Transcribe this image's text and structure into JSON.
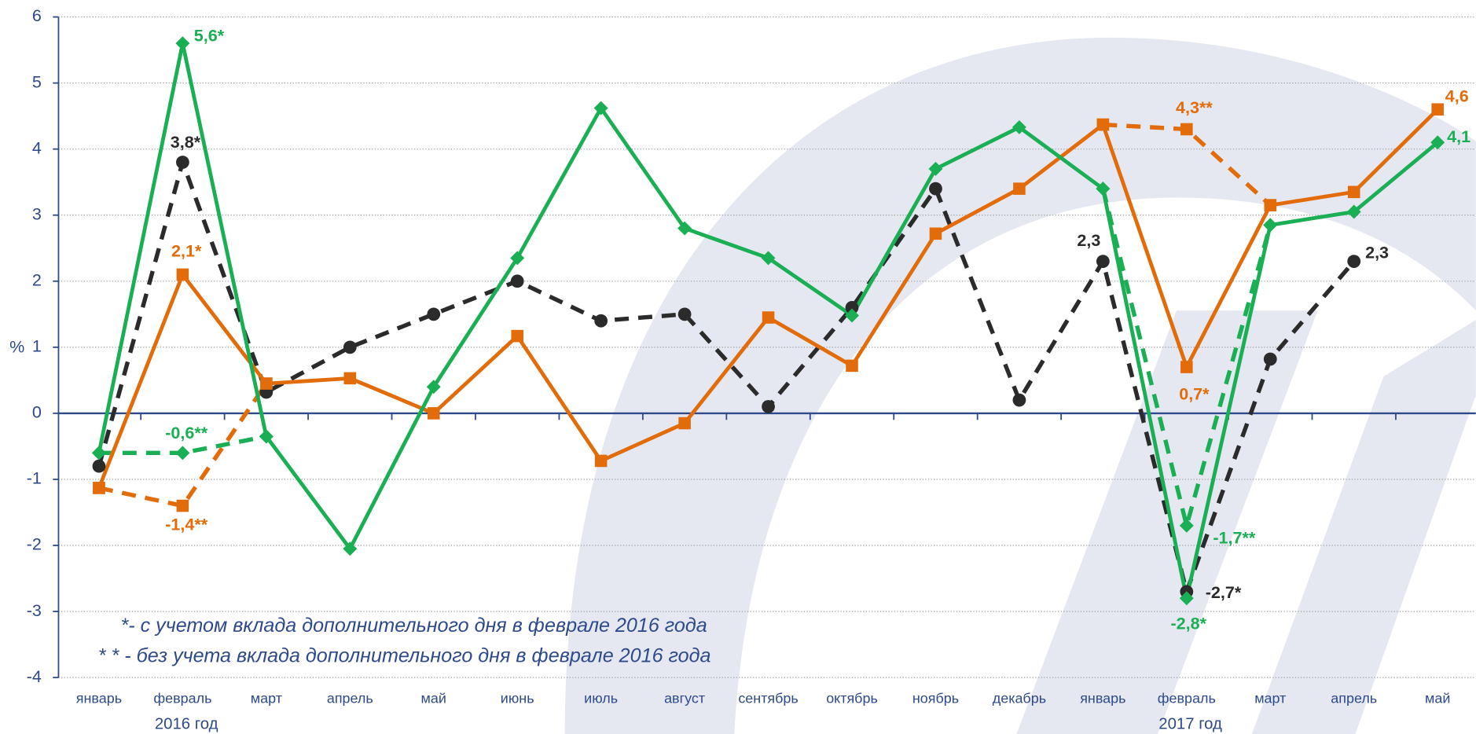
{
  "chart_data": {
    "type": "line",
    "ylabel": "%",
    "categories": [
      "январь",
      "февраль",
      "март",
      "апрель",
      "май",
      "июнь",
      "июль",
      "август",
      "сентябрь",
      "октябрь",
      "ноябрь",
      "декабрь",
      "январь",
      "февраль",
      "март",
      "апрель",
      "май"
    ],
    "category_groups": [
      null,
      "2016 год",
      null,
      null,
      null,
      null,
      null,
      null,
      null,
      null,
      null,
      null,
      null,
      "2017 год",
      null,
      null,
      null
    ],
    "ylim": [
      -4,
      6
    ],
    "yticks": [
      -4,
      -3,
      -2,
      -1,
      0,
      1,
      2,
      3,
      4,
      5,
      6
    ],
    "grid": true,
    "annotations": [
      "*- с учетом вклада дополнительного дня в феврале 2016 года",
      "* * - без учета вклада дополнительного дня в феврале 2016 года"
    ],
    "series": [
      {
        "color": "#1aaf54",
        "marker": "diamond",
        "dashed": false,
        "values": [
          -0.6,
          5.6,
          -0.35,
          -2.05,
          0.4,
          2.35,
          4.62,
          2.8,
          2.35,
          1.48,
          3.7,
          4.33,
          3.4,
          -2.8,
          2.85,
          3.05,
          4.1
        ],
        "value_labels": [
          null,
          "5,6*",
          null,
          null,
          null,
          null,
          null,
          null,
          null,
          null,
          null,
          null,
          null,
          "-2,8*",
          null,
          null,
          "4,1"
        ]
      },
      {
        "color": "#e36c0a",
        "marker": "square",
        "dashed": false,
        "values": [
          -1.13,
          2.1,
          0.45,
          0.53,
          0.0,
          1.17,
          -0.72,
          -0.15,
          1.45,
          0.72,
          2.72,
          3.4,
          4.37,
          0.7,
          3.15,
          3.35,
          4.6
        ],
        "value_labels": [
          null,
          "2,1*",
          null,
          null,
          null,
          null,
          null,
          null,
          null,
          null,
          null,
          null,
          null,
          "0,7*",
          null,
          null,
          "4,6"
        ]
      },
      {
        "color": "#2b2b2b",
        "marker": "circle",
        "dashed": true,
        "values": [
          -0.8,
          3.8,
          0.32,
          1.0,
          1.5,
          2.0,
          1.4,
          1.5,
          0.1,
          1.6,
          3.4,
          0.2,
          2.3,
          -2.7,
          0.82,
          2.3,
          null
        ],
        "value_labels": [
          null,
          "3,8*",
          null,
          null,
          null,
          null,
          null,
          null,
          null,
          null,
          null,
          null,
          "2,3",
          "-2,7*",
          null,
          "2,3",
          null
        ]
      },
      {
        "color": "#1aaf54",
        "marker": "diamond",
        "dashed": true,
        "values": [
          -0.6,
          -0.6,
          -0.35,
          null,
          null,
          null,
          null,
          null,
          null,
          null,
          null,
          null,
          3.4,
          -1.7,
          2.85,
          null,
          null
        ],
        "value_labels": [
          null,
          "-0,6**",
          null,
          null,
          null,
          null,
          null,
          null,
          null,
          null,
          null,
          null,
          null,
          "-1,7**",
          null,
          null,
          null
        ]
      },
      {
        "color": "#e36c0a",
        "marker": "square",
        "dashed": true,
        "values": [
          -1.13,
          -1.4,
          0.45,
          null,
          null,
          null,
          null,
          null,
          null,
          null,
          null,
          null,
          4.37,
          4.3,
          3.15,
          null,
          null
        ],
        "value_labels": [
          null,
          "-1,4**",
          null,
          null,
          null,
          null,
          null,
          null,
          null,
          null,
          null,
          null,
          null,
          "4,3**",
          null,
          null,
          null
        ]
      }
    ]
  }
}
